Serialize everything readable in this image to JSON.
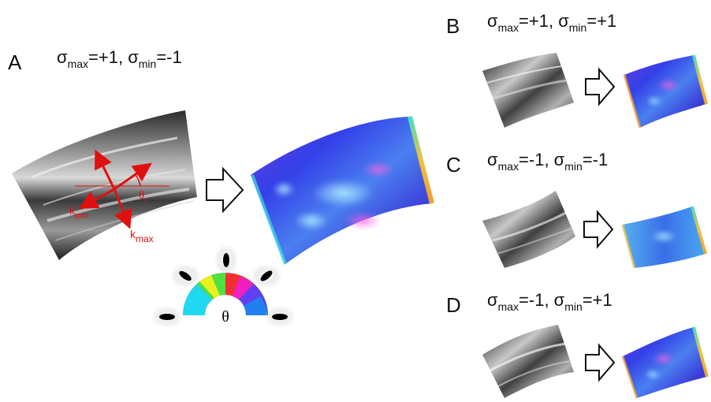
{
  "panels": [
    {
      "letter": "A",
      "label": {
        "s1": "σ",
        "sub1": "max",
        "eq1": "=+1, ",
        "s2": "σ",
        "sub2": "min",
        "eq2": "=-1"
      }
    },
    {
      "letter": "B",
      "label": {
        "s1": "σ",
        "sub1": "max",
        "eq1": "=+1, ",
        "s2": "σ",
        "sub2": "min",
        "eq2": "=+1"
      }
    },
    {
      "letter": "C",
      "label": {
        "s1": "σ",
        "sub1": "max",
        "eq1": "=-1, ",
        "s2": "σ",
        "sub2": "min",
        "eq2": "=-1"
      }
    },
    {
      "letter": "D",
      "label": {
        "s1": "σ",
        "sub1": "max",
        "eq1": "=-1, ",
        "s2": "σ",
        "sub2": "min",
        "eq2": "=+1"
      }
    }
  ],
  "vectors": {
    "kmin": {
      "main": "k",
      "sub": "min"
    },
    "kmax": {
      "main": "k",
      "sub": "max"
    },
    "thetas": {
      "main": "θ",
      "sub": "s"
    }
  },
  "colorwheel": {
    "theta": "θ"
  },
  "colors": {
    "vector": "#e01010",
    "surface_blue": "#3a45e6",
    "edge_yellow": "#f2c040"
  }
}
